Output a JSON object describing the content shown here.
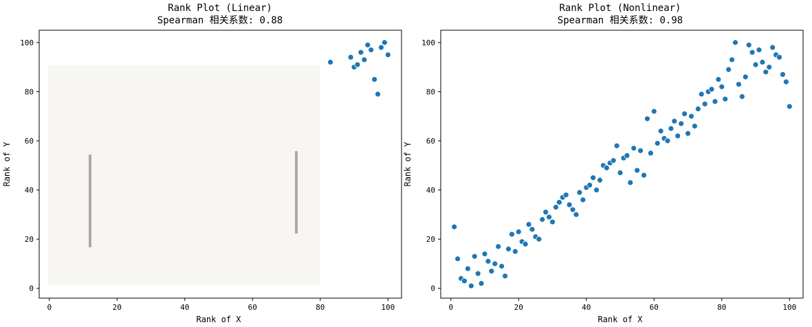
{
  "chart_data": [
    {
      "type": "scatter",
      "title": "Rank Plot (Linear)",
      "subtitle": "Spearman 相关系数: 0.88",
      "xlabel": "Rank of X",
      "ylabel": "Rank of Y",
      "xlim": [
        -3,
        104
      ],
      "ylim": [
        -4,
        105
      ],
      "xticks": [
        0,
        20,
        40,
        60,
        80,
        100
      ],
      "yticks": [
        0,
        20,
        40,
        60,
        80,
        100
      ],
      "grid": false,
      "marker_color": "#1f77b4",
      "series": [
        {
          "points": [
            [
              83,
              92
            ],
            [
              89,
              94
            ],
            [
              90,
              90
            ],
            [
              91,
              91
            ],
            [
              92,
              96
            ],
            [
              93,
              93
            ],
            [
              94,
              99
            ],
            [
              95,
              97
            ],
            [
              96,
              85
            ],
            [
              97,
              79
            ],
            [
              98,
              98
            ],
            [
              99,
              100
            ],
            [
              100,
              95
            ]
          ]
        }
      ],
      "note_overlay": "image region obscured by light overlay from about x=0..80, y=0..90"
    },
    {
      "type": "scatter",
      "title": "Rank Plot (Nonlinear)",
      "subtitle": "Spearman 相关系数: 0.98",
      "xlabel": "Rank of X",
      "ylabel": "Rank of Y",
      "xlim": [
        -3,
        104
      ],
      "ylim": [
        -4,
        105
      ],
      "xticks": [
        0,
        20,
        40,
        60,
        80,
        100
      ],
      "yticks": [
        0,
        20,
        40,
        60,
        80,
        100
      ],
      "grid": false,
      "marker_color": "#1f77b4",
      "series": [
        {
          "points": [
            [
              1,
              25
            ],
            [
              2,
              12
            ],
            [
              3,
              4
            ],
            [
              4,
              3
            ],
            [
              5,
              8
            ],
            [
              6,
              1
            ],
            [
              7,
              13
            ],
            [
              8,
              6
            ],
            [
              9,
              2
            ],
            [
              10,
              14
            ],
            [
              11,
              11
            ],
            [
              12,
              7
            ],
            [
              13,
              10
            ],
            [
              14,
              17
            ],
            [
              15,
              9
            ],
            [
              16,
              5
            ],
            [
              17,
              16
            ],
            [
              18,
              22
            ],
            [
              19,
              15
            ],
            [
              20,
              23
            ],
            [
              21,
              19
            ],
            [
              22,
              18
            ],
            [
              23,
              26
            ],
            [
              24,
              24
            ],
            [
              25,
              21
            ],
            [
              26,
              20
            ],
            [
              27,
              28
            ],
            [
              28,
              31
            ],
            [
              29,
              29
            ],
            [
              30,
              27
            ],
            [
              31,
              33
            ],
            [
              32,
              35
            ],
            [
              33,
              37
            ],
            [
              34,
              38
            ],
            [
              35,
              34
            ],
            [
              36,
              32
            ],
            [
              37,
              30
            ],
            [
              38,
              39
            ],
            [
              39,
              36
            ],
            [
              40,
              41
            ],
            [
              41,
              42
            ],
            [
              42,
              45
            ],
            [
              43,
              40
            ],
            [
              44,
              44
            ],
            [
              45,
              50
            ],
            [
              46,
              49
            ],
            [
              47,
              51
            ],
            [
              48,
              52
            ],
            [
              49,
              58
            ],
            [
              50,
              47
            ],
            [
              51,
              53
            ],
            [
              52,
              54
            ],
            [
              53,
              43
            ],
            [
              54,
              57
            ],
            [
              55,
              48
            ],
            [
              56,
              56
            ],
            [
              57,
              46
            ],
            [
              58,
              69
            ],
            [
              59,
              55
            ],
            [
              60,
              72
            ],
            [
              61,
              59
            ],
            [
              62,
              64
            ],
            [
              63,
              61
            ],
            [
              64,
              60
            ],
            [
              65,
              65
            ],
            [
              66,
              68
            ],
            [
              67,
              62
            ],
            [
              68,
              67
            ],
            [
              69,
              71
            ],
            [
              70,
              63
            ],
            [
              71,
              70
            ],
            [
              72,
              66
            ],
            [
              73,
              73
            ],
            [
              74,
              79
            ],
            [
              75,
              75
            ],
            [
              76,
              80
            ],
            [
              77,
              81
            ],
            [
              78,
              76
            ],
            [
              79,
              85
            ],
            [
              80,
              82
            ],
            [
              81,
              77
            ],
            [
              82,
              89
            ],
            [
              83,
              93
            ],
            [
              84,
              100
            ],
            [
              85,
              83
            ],
            [
              86,
              78
            ],
            [
              87,
              86
            ],
            [
              88,
              99
            ],
            [
              89,
              96
            ],
            [
              90,
              91
            ],
            [
              91,
              97
            ],
            [
              92,
              92
            ],
            [
              93,
              88
            ],
            [
              94,
              90
            ],
            [
              95,
              98
            ],
            [
              96,
              95
            ],
            [
              97,
              94
            ],
            [
              98,
              87
            ],
            [
              99,
              84
            ],
            [
              100,
              74
            ]
          ]
        }
      ]
    }
  ]
}
